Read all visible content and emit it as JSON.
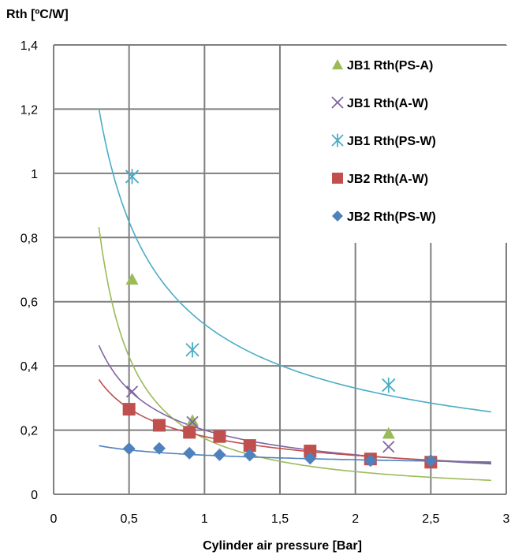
{
  "chart_data": {
    "type": "scatter",
    "title": "",
    "ylabel": "Rth [ºC/W]",
    "xlabel": "Cylinder air pressure [Bar]",
    "xlim": [
      0,
      3
    ],
    "ylim": [
      0,
      1.4
    ],
    "x_ticks": [
      {
        "value": 0,
        "label": "0"
      },
      {
        "value": 0.5,
        "label": "0,5"
      },
      {
        "value": 1,
        "label": "1"
      },
      {
        "value": 1.5,
        "label": "1,5"
      },
      {
        "value": 2,
        "label": "2"
      },
      {
        "value": 2.5,
        "label": "2,5"
      },
      {
        "value": 3,
        "label": "3"
      }
    ],
    "y_ticks": [
      {
        "value": 0,
        "label": "0"
      },
      {
        "value": 0.2,
        "label": "0,2"
      },
      {
        "value": 0.4,
        "label": "0,4"
      },
      {
        "value": 0.6,
        "label": "0,6"
      },
      {
        "value": 0.8,
        "label": "0,8"
      },
      {
        "value": 1.0,
        "label": "1"
      },
      {
        "value": 1.2,
        "label": "1,2"
      },
      {
        "value": 1.4,
        "label": "1,4"
      }
    ],
    "grid": true,
    "legend_position": "top-right",
    "series": [
      {
        "name": "JB1 Rth(PS-A)",
        "marker": "triangle",
        "color": "#9BBB59",
        "points": [
          [
            0.52,
            0.67
          ],
          [
            0.92,
            0.23
          ],
          [
            2.22,
            0.19
          ]
        ],
        "trend": {
          "a": 0.174,
          "b": -1.3,
          "x_from": 0.3,
          "x_to": 2.9
        }
      },
      {
        "name": "JB1 Rth(A-W)",
        "marker": "x",
        "color": "#8064A2",
        "points": [
          [
            0.52,
            0.32
          ],
          [
            0.92,
            0.225
          ],
          [
            2.22,
            0.148
          ]
        ],
        "trend": {
          "a": 0.2,
          "b": -0.7,
          "x_from": 0.3,
          "x_to": 2.9
        }
      },
      {
        "name": "JB1 Rth(PS-W)",
        "marker": "star",
        "color": "#4BACC6",
        "points": [
          [
            0.52,
            0.99
          ],
          [
            0.92,
            0.45
          ],
          [
            2.22,
            0.34
          ]
        ],
        "trend": {
          "a": 0.53,
          "b": -0.68,
          "x_from": 0.3,
          "x_to": 2.9
        }
      },
      {
        "name": "JB2 Rth(A-W)",
        "marker": "square",
        "color": "#C0504D",
        "points": [
          [
            0.5,
            0.265
          ],
          [
            0.7,
            0.215
          ],
          [
            0.9,
            0.193
          ],
          [
            1.1,
            0.18
          ],
          [
            1.3,
            0.152
          ],
          [
            1.7,
            0.135
          ],
          [
            2.1,
            0.11
          ],
          [
            2.5,
            0.1
          ]
        ],
        "trend": {
          "a": 0.18,
          "b": -0.57,
          "x_from": 0.3,
          "x_to": 2.9
        }
      },
      {
        "name": "JB2 Rth(PS-W)",
        "marker": "diamond",
        "color": "#4F81BD",
        "points": [
          [
            0.5,
            0.142
          ],
          [
            0.7,
            0.143
          ],
          [
            0.9,
            0.128
          ],
          [
            1.1,
            0.123
          ],
          [
            1.3,
            0.122
          ],
          [
            1.7,
            0.112
          ],
          [
            2.1,
            0.105
          ],
          [
            2.5,
            0.105
          ]
        ],
        "trend": {
          "a": 0.122,
          "b": -0.18,
          "x_from": 0.3,
          "x_to": 2.9
        }
      }
    ]
  }
}
